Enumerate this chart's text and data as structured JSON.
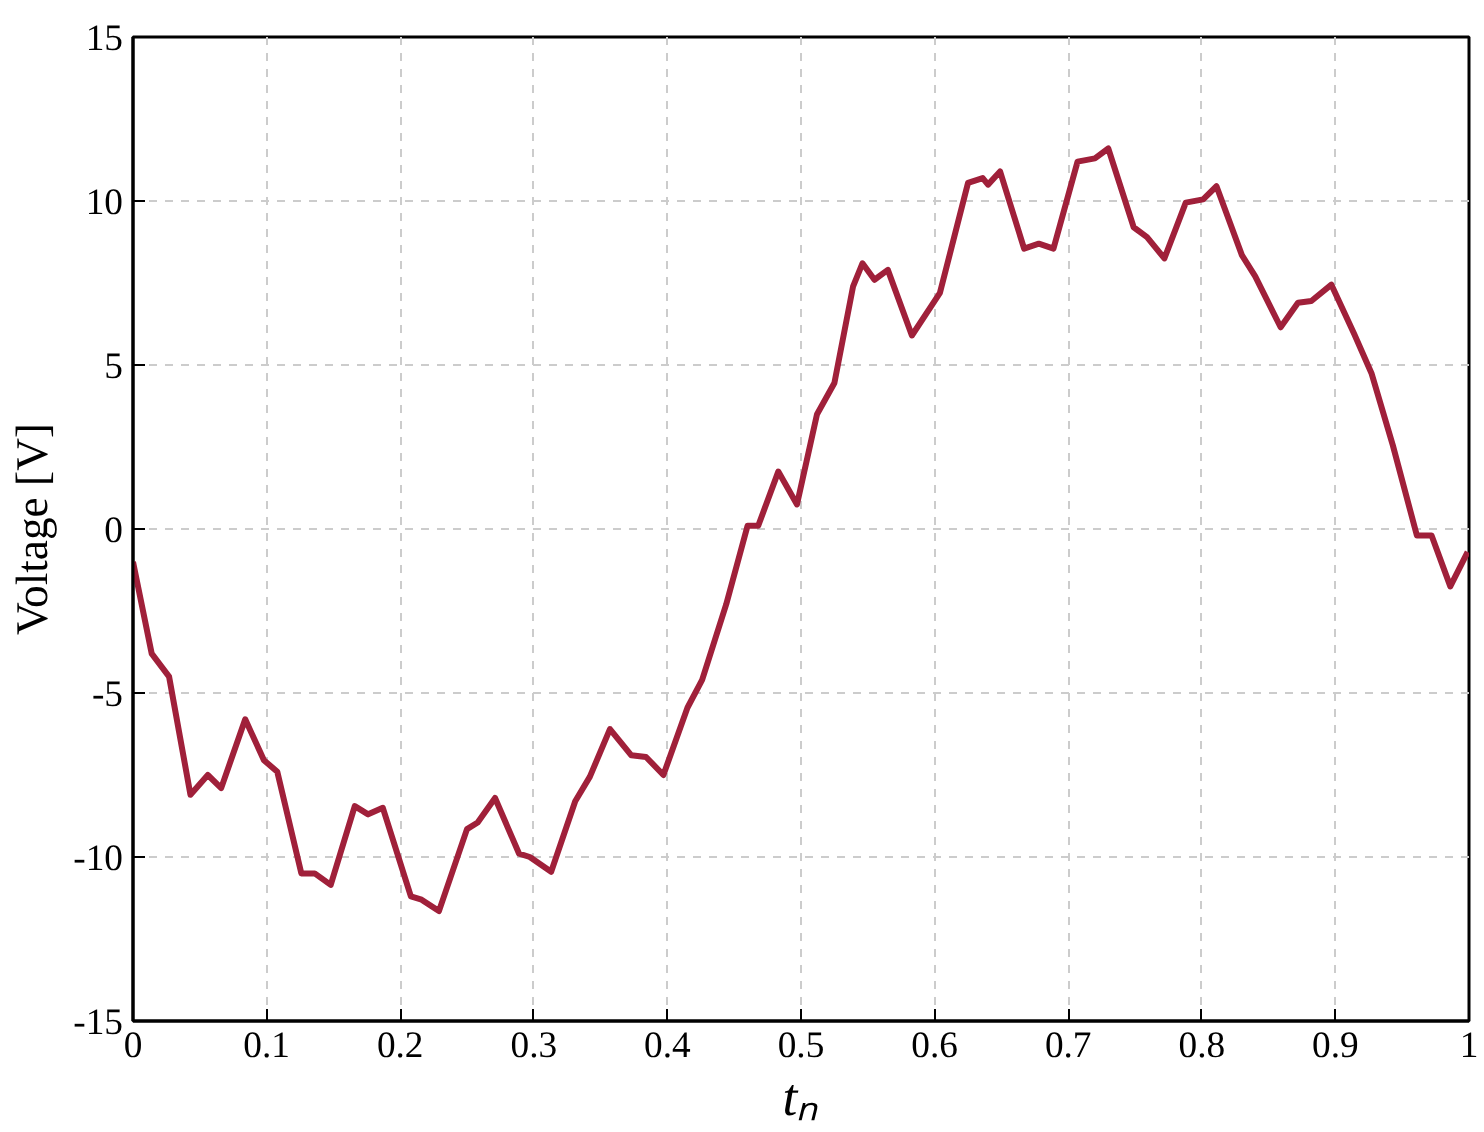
{
  "chart_data": {
    "type": "line",
    "xlabel": "tₙ",
    "ylabel": "Voltage [V]",
    "xlim": [
      0,
      1
    ],
    "ylim": [
      -15,
      15
    ],
    "xticks": [
      0,
      0.1,
      0.2,
      0.3,
      0.4,
      0.5,
      0.6,
      0.7,
      0.8,
      0.9,
      1
    ],
    "yticks": [
      -15,
      -10,
      -5,
      0,
      5,
      10,
      15
    ],
    "grid": true,
    "marker": "none",
    "line_style": "solid",
    "series": [
      {
        "color": "#a0203a",
        "x": [
          0,
          0.014,
          0.027,
          0.043,
          0.056,
          0.066,
          0.084,
          0.098,
          0.108,
          0.126,
          0.136,
          0.148,
          0.166,
          0.176,
          0.187,
          0.208,
          0.216,
          0.229,
          0.25,
          0.258,
          0.271,
          0.289,
          0.297,
          0.313,
          0.331,
          0.342,
          0.357,
          0.373,
          0.384,
          0.397,
          0.415,
          0.426,
          0.444,
          0.46,
          0.468,
          0.483,
          0.497,
          0.512,
          0.525,
          0.539,
          0.546,
          0.555,
          0.565,
          0.583,
          0.604,
          0.625,
          0.636,
          0.64,
          0.649,
          0.667,
          0.678,
          0.689,
          0.707,
          0.72,
          0.73,
          0.749,
          0.759,
          0.772,
          0.788,
          0.801,
          0.811,
          0.83,
          0.84,
          0.859,
          0.872,
          0.882,
          0.897,
          0.914,
          0.927,
          0.943,
          0.961,
          0.972,
          0.986,
          0.999
        ],
        "values": [
          -1.0,
          -3.8,
          -4.5,
          -8.1,
          -7.5,
          -7.9,
          -5.8,
          -7.05,
          -7.4,
          -10.5,
          -10.5,
          -10.85,
          -8.45,
          -8.7,
          -8.5,
          -11.2,
          -11.3,
          -11.65,
          -9.15,
          -8.95,
          -8.2,
          -9.9,
          -10.0,
          -10.45,
          -8.3,
          -7.55,
          -6.1,
          -6.9,
          -6.95,
          -7.5,
          -5.45,
          -4.6,
          -2.3,
          0.1,
          0.1,
          1.75,
          0.75,
          3.5,
          4.45,
          7.4,
          8.1,
          7.6,
          7.9,
          5.9,
          7.2,
          10.55,
          10.7,
          10.5,
          10.9,
          8.55,
          8.7,
          8.55,
          11.2,
          11.3,
          11.6,
          9.2,
          8.9,
          8.25,
          9.95,
          10.05,
          10.45,
          8.35,
          7.7,
          6.15,
          6.9,
          6.95,
          7.45,
          5.95,
          4.75,
          2.55,
          -0.2,
          -0.2,
          -1.75,
          -0.7
        ]
      }
    ]
  }
}
